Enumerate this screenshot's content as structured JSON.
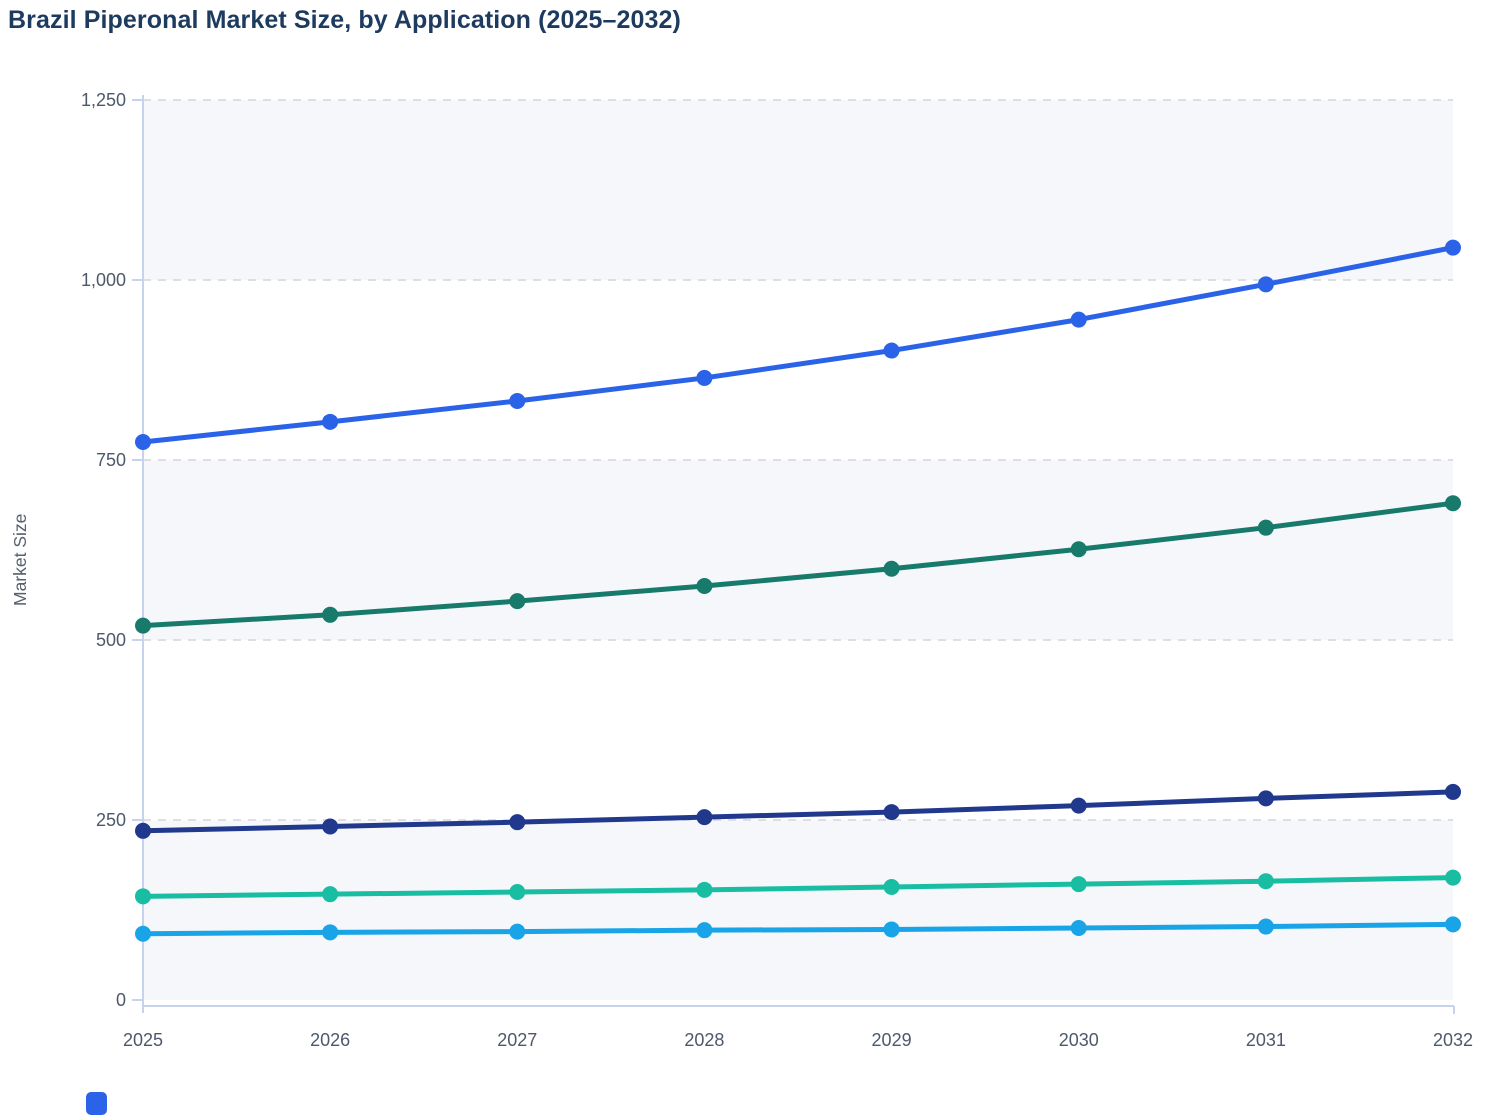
{
  "colors": {
    "band": "#f5f7fa",
    "gridline": "#d8dbe0",
    "axis_line": "#c7d3ee",
    "tick_text": "#4d596b",
    "title_text": "#1d3a5f",
    "axis_title_text": "#56606e",
    "accent_blue": "#2b63e8"
  },
  "legend_fragment": {
    "color": "#2b63e8"
  },
  "chart_data": {
    "type": "line",
    "title": "Brazil Piperonal Market Size, by Application (2025–2032)",
    "xlabel": "",
    "ylabel": "Market Size",
    "x": [
      2025,
      2026,
      2027,
      2028,
      2029,
      2030,
      2031,
      2032
    ],
    "x_tick_labels": [
      "2025",
      "2026",
      "2027",
      "2028",
      "2029",
      "2030",
      "2031",
      "2032"
    ],
    "y_ticks": [
      0,
      250,
      500,
      750,
      1000,
      1250
    ],
    "y_tick_labels": [
      "0",
      "250",
      "500",
      "750",
      "1,000",
      "1,250"
    ],
    "ylim": [
      0,
      1250
    ],
    "grid": "horizontal-dashed",
    "plot_bands": "alternating shaded bands between 0-250, 500-750, 1000-1250",
    "legend_position": "below (cut off in screenshot)",
    "marker": "circle",
    "series": [
      {
        "name": "series-blue",
        "color": "#2b63e8",
        "values": [
          775,
          803,
          832,
          864,
          902,
          945,
          994,
          1045
        ]
      },
      {
        "name": "series-teal-dark",
        "color": "#177a6b",
        "values": [
          520,
          535,
          554,
          575,
          599,
          626,
          656,
          690
        ]
      },
      {
        "name": "series-navy",
        "color": "#20398c",
        "values": [
          235,
          241,
          247,
          254,
          261,
          270,
          280,
          289
        ]
      },
      {
        "name": "series-teal-light",
        "color": "#18bda2",
        "values": [
          144,
          147,
          150,
          153,
          157,
          161,
          165,
          170
        ]
      },
      {
        "name": "series-cyan",
        "color": "#18a4e6",
        "values": [
          92,
          94,
          95,
          97,
          98,
          100,
          102,
          105
        ]
      }
    ]
  }
}
